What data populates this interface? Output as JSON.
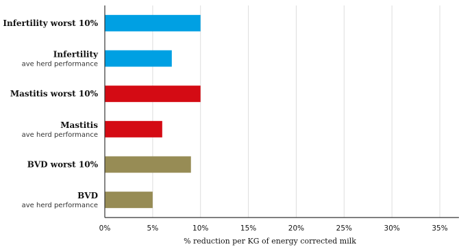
{
  "chart_data": {
    "type": "bar",
    "orientation": "horizontal",
    "categories": [
      {
        "label": "Infertility worst 10%",
        "sublabel": ""
      },
      {
        "label": "Infertility",
        "sublabel": "ave herd performance"
      },
      {
        "label": "Mastitis worst 10%",
        "sublabel": ""
      },
      {
        "label": "Mastitis",
        "sublabel": "ave herd performance"
      },
      {
        "label": "BVD worst 10%",
        "sublabel": ""
      },
      {
        "label": "BVD",
        "sublabel": "ave herd performance"
      }
    ],
    "values": [
      10,
      7,
      10,
      6,
      9,
      5
    ],
    "colors": [
      "#00a0e3",
      "#00a0e3",
      "#d40b14",
      "#d40b14",
      "#978c55",
      "#978c55"
    ],
    "xlabel": "% reduction per KG of energy corrected milk",
    "xlim": [
      0,
      37
    ],
    "xticks": [
      0,
      5,
      10,
      15,
      20,
      25,
      30,
      35
    ],
    "xtick_labels": [
      "0%",
      "5%",
      "10%",
      "15%",
      "20%",
      "25%",
      "30%",
      "35%"
    ],
    "grid": true,
    "grid_color": "#dddddd",
    "axis_color": "#333333"
  }
}
